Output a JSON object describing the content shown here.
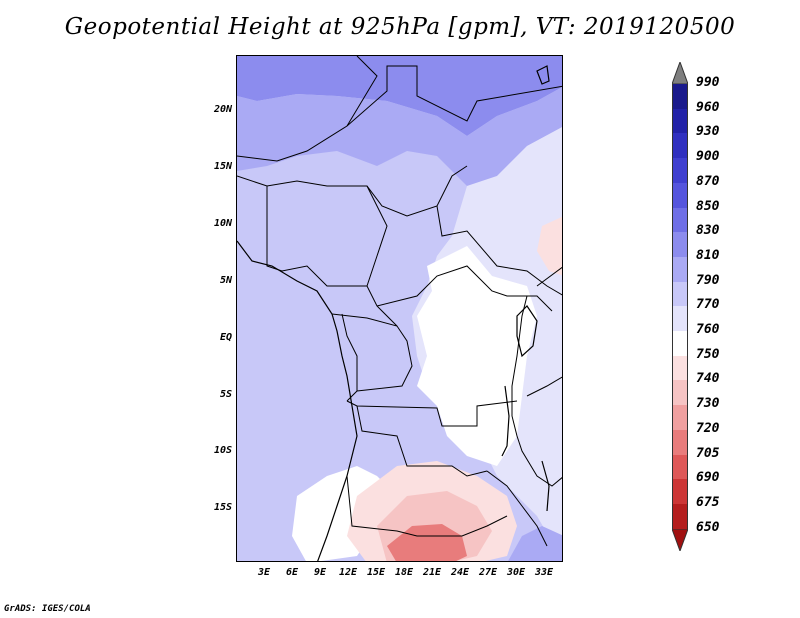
{
  "title": "Geopotential Height at 925hPa [gpm], VT: 2019120500",
  "footer": "GrADS: IGES/COLA",
  "map": {
    "lat_labels": [
      "20N",
      "15N",
      "10N",
      "5N",
      "EQ",
      "5S",
      "10S",
      "15S"
    ],
    "lon_labels": [
      "3E",
      "6E",
      "9E",
      "12E",
      "15E",
      "18E",
      "21E",
      "24E",
      "27E",
      "30E",
      "33E"
    ]
  },
  "colorbar": {
    "levels": [
      "990",
      "960",
      "930",
      "900",
      "870",
      "850",
      "830",
      "810",
      "790",
      "770",
      "760",
      "750",
      "740",
      "730",
      "720",
      "705",
      "690",
      "675",
      "650"
    ],
    "colors": [
      "#7f7f7f",
      "#1a1a8c",
      "#2222a8",
      "#3030c0",
      "#4040d0",
      "#5555dd",
      "#6f6fe6",
      "#8c8cee",
      "#aaaaf4",
      "#c8c8f8",
      "#e4e4fb",
      "#ffffff",
      "#fbe0e0",
      "#f6c4c4",
      "#f0a0a0",
      "#e87c7c",
      "#de5858",
      "#cc3636",
      "#b41e1e",
      "#a01010"
    ]
  },
  "colors": {
    "dark_purple": "#8c8cee",
    "purple": "#aaaaf4",
    "light_purple": "#c8c8f8",
    "pale_purple": "#e4e4fb",
    "pink": "#fbe0e0",
    "light_red": "#f0a0a0",
    "red": "#e87c7c"
  }
}
